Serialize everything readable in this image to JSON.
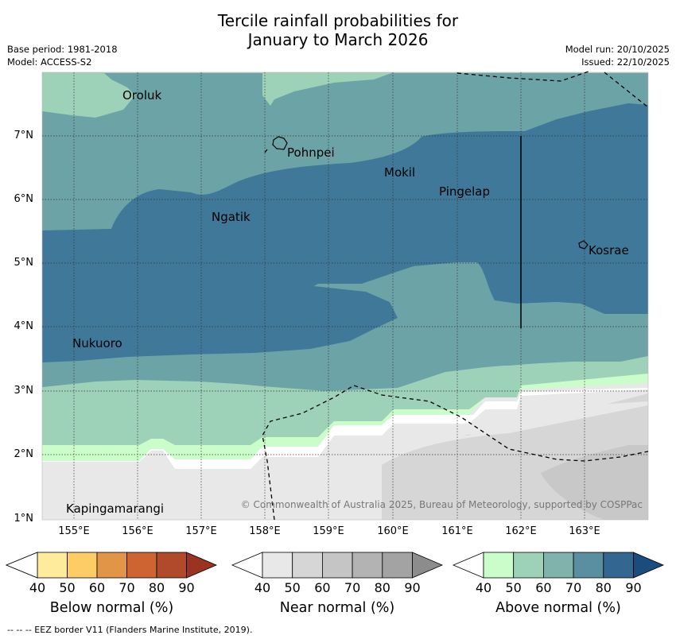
{
  "title": {
    "line1": "Tercile rainfall probabilities for",
    "line2": "January to March 2026"
  },
  "meta": {
    "base_period": "Base period: 1981-2018",
    "model": "Model: ACCESS-S2",
    "model_run": "Model run: 20/10/2025",
    "issued": "Issued: 22/10/2025"
  },
  "map": {
    "lat_labels": [
      "7°N",
      "6°N",
      "5°N",
      "4°N",
      "3°N",
      "2°N",
      "1°N"
    ],
    "lon_labels": [
      "155°E",
      "156°E",
      "157°E",
      "158°E",
      "159°E",
      "160°E",
      "161°E",
      "162°E",
      "163°E"
    ],
    "places": [
      "Oroluk",
      "Pohnpei",
      "Mokil",
      "Pingelap",
      "Ngatik",
      "Kosrae",
      "Nukuoro",
      "Kapingamarangi"
    ],
    "copyright": "© Commonwealth of Australia 2025, Bureau of Meteorology, supported by COSPPac",
    "colors": {
      "above_50": "#9dd1b8",
      "above_60": "#6ca3a6",
      "above_70": "#3f7898",
      "above_40": "#cbfdcb",
      "near_40": "#e8e8e8",
      "near_50": "#d6d6d6",
      "near_60": "#c8c8c8"
    }
  },
  "colorbars": {
    "ticks": [
      "40",
      "50",
      "60",
      "70",
      "80",
      "90"
    ],
    "below": {
      "title": "Below normal (%)",
      "colors": [
        "#ffffff",
        "#ffeb9c",
        "#fecc65",
        "#e19547",
        "#cd6432",
        "#b04a2a",
        "#9a3321"
      ]
    },
    "near": {
      "title": "Near normal (%)",
      "colors": [
        "#ffffff",
        "#e8e8e8",
        "#d6d6d6",
        "#c5c5c5",
        "#b3b3b3",
        "#a3a3a3",
        "#8c8c8c"
      ]
    },
    "above": {
      "title": "Above normal (%)",
      "colors": [
        "#ffffff",
        "#cbfdcb",
        "#9dd1b8",
        "#80b3ac",
        "#5a8fa0",
        "#336690",
        "#1a4c80"
      ]
    }
  },
  "footer": "--  --  -- EEZ border V11 (Flanders Marine Institute, 2019)."
}
